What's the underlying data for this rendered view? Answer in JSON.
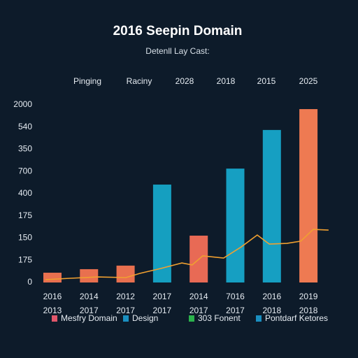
{
  "chart_data": {
    "type": "bar-line",
    "title": "2016 Seepin Domain",
    "subtitle": "Detenll Lay Cast:",
    "top_labels": [
      "Pinging",
      "Raciny",
      "2028",
      "2018",
      "2015",
      "2025"
    ],
    "categories": [
      "2016",
      "2014",
      "2012",
      "2017",
      "2014",
      "7016",
      "2016",
      "2019"
    ],
    "sub_categories": [
      "2013",
      "2017",
      "2017",
      "2017",
      "2017",
      "2017",
      "2018",
      "2018"
    ],
    "bars": {
      "values": [
        0.44,
        0.6,
        0.76,
        4.41,
        2.11,
        5.13,
        6.87,
        7.81
      ],
      "colors": [
        "#e8704f",
        "#e8704f",
        "#e8704f",
        "#159fc0",
        "#e86a55",
        "#169fc2",
        "#169fc2",
        "#ee7a52"
      ]
    },
    "line": {
      "color": "#f0a030",
      "x": [
        -0.19,
        0.48,
        1.24,
        2.01,
        2.39,
        2.96,
        3.54,
        3.82,
        4.11,
        4.68,
        5.16,
        5.6,
        5.93,
        6.41,
        6.79,
        7.13,
        7.55
      ],
      "values": [
        0.13,
        0.19,
        0.25,
        0.22,
        0.41,
        0.63,
        0.88,
        0.79,
        1.2,
        1.1,
        1.6,
        2.14,
        1.73,
        1.76,
        1.86,
        2.39,
        2.36
      ]
    },
    "xlim": [
      -0.6,
      7.6
    ],
    "ylim": [
      0,
      8
    ],
    "yticks": [
      {
        "value": 0,
        "label": "0"
      },
      {
        "value": 1,
        "label": "175"
      },
      {
        "value": 2,
        "label": "150"
      },
      {
        "value": 3,
        "label": "175"
      },
      {
        "value": 4,
        "label": "400"
      },
      {
        "value": 5,
        "label": "700"
      },
      {
        "value": 6,
        "label": "350"
      },
      {
        "value": 7,
        "label": "540"
      },
      {
        "value": 8,
        "label": "2000"
      }
    ],
    "legend": [
      {
        "label": "Mesfry Domain",
        "color": "#e0566a"
      },
      {
        "label": "Design",
        "color": "#1a8fc0"
      },
      {
        "label": "303 Fonent",
        "color": "#2bb24c"
      },
      {
        "label": "Pontdarf Ketores",
        "color": "#1a8fc0"
      }
    ]
  }
}
